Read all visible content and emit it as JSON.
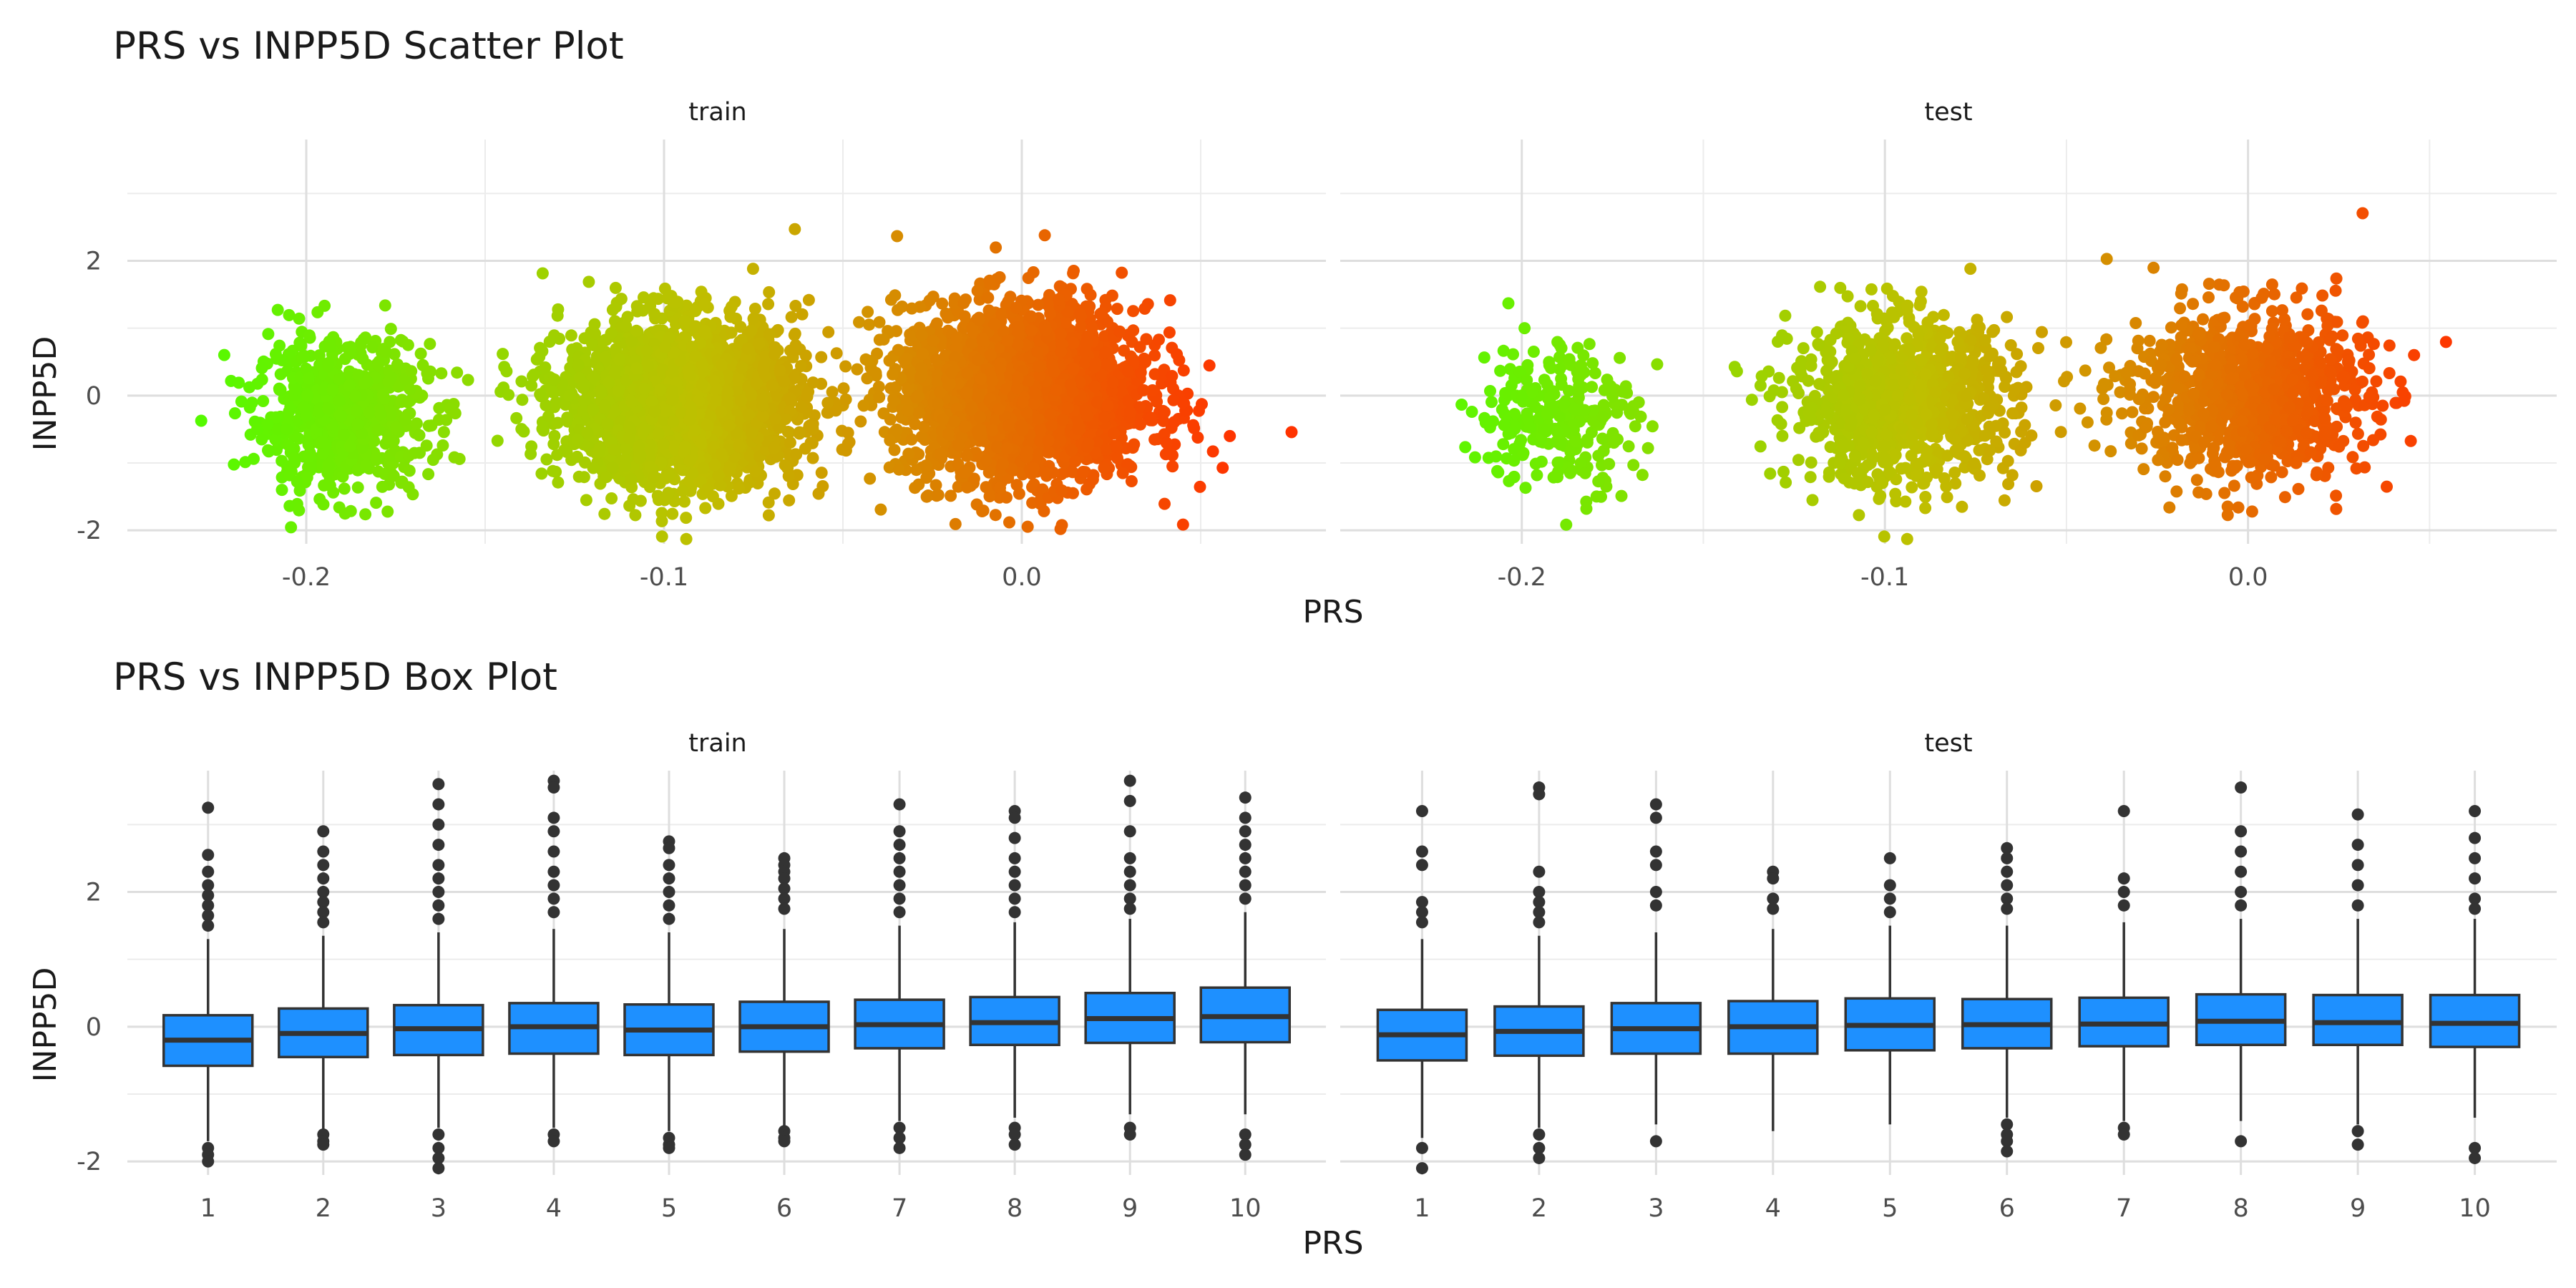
{
  "chart_data": [
    {
      "type": "scatter",
      "title": "PRS vs INPP5D Scatter Plot",
      "xlabel": "PRS",
      "ylabel": "INPP5D",
      "facets": [
        "train",
        "test"
      ],
      "xlim": [
        -0.25,
        0.085
      ],
      "ylim": [
        -2.2,
        3.8
      ],
      "x_ticks": [
        -0.2,
        -0.1,
        0.0
      ],
      "x_tick_labels": [
        "-0.2",
        "-0.1",
        "0.0"
      ],
      "y_ticks": [
        -2,
        0,
        2
      ],
      "y_tick_labels": [
        "-2",
        "0",
        "2"
      ],
      "grid": true,
      "color_gradient": [
        "#4dff00",
        "#bfbf00",
        "#ff3300"
      ],
      "clusters": [
        {
          "facet": "train",
          "x_center": -0.19,
          "x_spread": 0.022,
          "y_center": -0.3,
          "y_spread": 0.55
        },
        {
          "facet": "train",
          "x_center": -0.095,
          "x_spread": 0.03,
          "y_center": -0.1,
          "y_spread": 0.6
        },
        {
          "facet": "train",
          "x_center": 0.0,
          "x_spread": 0.032,
          "y_center": 0.05,
          "y_spread": 0.65
        },
        {
          "facet": "test",
          "x_center": -0.19,
          "x_spread": 0.02,
          "y_center": -0.3,
          "y_spread": 0.55
        },
        {
          "facet": "test",
          "x_center": -0.095,
          "x_spread": 0.028,
          "y_center": -0.1,
          "y_spread": 0.6
        },
        {
          "facet": "test",
          "x_center": 0.0,
          "x_spread": 0.03,
          "y_center": 0.05,
          "y_spread": 0.62
        }
      ]
    },
    {
      "type": "box",
      "title": "PRS vs INPP5D Box Plot",
      "xlabel": "PRS",
      "ylabel": "INPP5D",
      "facets": [
        "train",
        "test"
      ],
      "categories": [
        "1",
        "2",
        "3",
        "4",
        "5",
        "6",
        "7",
        "8",
        "9",
        "10"
      ],
      "ylim": [
        -2.2,
        3.8
      ],
      "y_ticks": [
        -2,
        0,
        2
      ],
      "y_tick_labels": [
        "-2",
        "0",
        "2"
      ],
      "grid": true,
      "fill_color": "#1e90ff",
      "series": [
        {
          "name": "train",
          "boxes": [
            {
              "q1": -0.58,
              "median": -0.2,
              "q3": 0.17,
              "whisker_low": -1.7,
              "whisker_high": 1.3,
              "outliers": [
                3.25,
                2.55,
                2.3,
                2.1,
                1.95,
                1.8,
                1.65,
                1.5,
                -1.8,
                -1.9,
                -2.0
              ]
            },
            {
              "q1": -0.45,
              "median": -0.1,
              "q3": 0.27,
              "whisker_low": -1.55,
              "whisker_high": 1.35,
              "outliers": [
                2.9,
                2.6,
                2.4,
                2.2,
                2.0,
                1.85,
                1.7,
                1.55,
                -1.6,
                -1.7,
                -1.75
              ]
            },
            {
              "q1": -0.42,
              "median": -0.03,
              "q3": 0.32,
              "whisker_low": -1.5,
              "whisker_high": 1.4,
              "outliers": [
                3.6,
                3.3,
                3.0,
                2.7,
                2.4,
                2.2,
                2.0,
                1.8,
                1.6,
                -1.6,
                -1.8,
                -1.95,
                -2.1
              ]
            },
            {
              "q1": -0.4,
              "median": 0.0,
              "q3": 0.35,
              "whisker_low": -1.5,
              "whisker_high": 1.45,
              "outliers": [
                3.65,
                3.55,
                3.1,
                2.9,
                2.6,
                2.3,
                2.1,
                1.9,
                1.7,
                -1.6,
                -1.7
              ]
            },
            {
              "q1": -0.42,
              "median": -0.05,
              "q3": 0.33,
              "whisker_low": -1.55,
              "whisker_high": 1.4,
              "outliers": [
                2.75,
                2.65,
                2.4,
                2.2,
                2.0,
                1.8,
                1.6,
                -1.65,
                -1.75,
                -1.8
              ]
            },
            {
              "q1": -0.37,
              "median": 0.0,
              "q3": 0.37,
              "whisker_low": -1.5,
              "whisker_high": 1.45,
              "outliers": [
                2.5,
                2.4,
                2.3,
                2.2,
                2.05,
                1.9,
                1.75,
                -1.55,
                -1.65,
                -1.7
              ]
            },
            {
              "q1": -0.32,
              "median": 0.03,
              "q3": 0.4,
              "whisker_low": -1.4,
              "whisker_high": 1.5,
              "outliers": [
                3.3,
                2.9,
                2.7,
                2.5,
                2.3,
                2.1,
                1.9,
                1.7,
                -1.5,
                -1.65,
                -1.8
              ]
            },
            {
              "q1": -0.27,
              "median": 0.06,
              "q3": 0.44,
              "whisker_low": -1.35,
              "whisker_high": 1.55,
              "outliers": [
                3.2,
                3.1,
                2.8,
                2.5,
                2.3,
                2.1,
                1.9,
                1.7,
                -1.5,
                -1.6,
                -1.75
              ]
            },
            {
              "q1": -0.24,
              "median": 0.12,
              "q3": 0.5,
              "whisker_low": -1.3,
              "whisker_high": 1.6,
              "outliers": [
                3.65,
                3.35,
                2.9,
                2.5,
                2.3,
                2.1,
                1.9,
                1.75,
                -1.5,
                -1.6
              ]
            },
            {
              "q1": -0.23,
              "median": 0.15,
              "q3": 0.58,
              "whisker_low": -1.3,
              "whisker_high": 1.7,
              "outliers": [
                3.4,
                3.1,
                2.9,
                2.7,
                2.5,
                2.3,
                2.1,
                1.9,
                -1.6,
                -1.75,
                -1.9
              ]
            }
          ]
        },
        {
          "name": "test",
          "boxes": [
            {
              "q1": -0.5,
              "median": -0.12,
              "q3": 0.25,
              "whisker_low": -1.65,
              "whisker_high": 1.3,
              "outliers": [
                3.2,
                2.6,
                2.4,
                1.85,
                1.7,
                1.55,
                -1.8,
                -2.1
              ]
            },
            {
              "q1": -0.43,
              "median": -0.07,
              "q3": 0.3,
              "whisker_low": -1.5,
              "whisker_high": 1.35,
              "outliers": [
                3.55,
                3.45,
                2.3,
                2.0,
                1.85,
                1.7,
                1.55,
                -1.6,
                -1.8,
                -1.95
              ]
            },
            {
              "q1": -0.4,
              "median": -0.03,
              "q3": 0.35,
              "whisker_low": -1.45,
              "whisker_high": 1.4,
              "outliers": [
                3.3,
                3.1,
                2.6,
                2.4,
                2.0,
                1.8,
                -1.7
              ]
            },
            {
              "q1": -0.4,
              "median": 0.0,
              "q3": 0.38,
              "whisker_low": -1.55,
              "whisker_high": 1.45,
              "outliers": [
                2.3,
                2.2,
                1.9,
                1.75
              ]
            },
            {
              "q1": -0.35,
              "median": 0.02,
              "q3": 0.42,
              "whisker_low": -1.45,
              "whisker_high": 1.5,
              "outliers": [
                2.5,
                2.1,
                1.9,
                1.7
              ]
            },
            {
              "q1": -0.32,
              "median": 0.03,
              "q3": 0.41,
              "whisker_low": -1.35,
              "whisker_high": 1.5,
              "outliers": [
                2.65,
                2.5,
                2.3,
                2.1,
                1.9,
                1.75,
                -1.45,
                -1.6,
                -1.7,
                -1.85
              ]
            },
            {
              "q1": -0.29,
              "median": 0.04,
              "q3": 0.43,
              "whisker_low": -1.4,
              "whisker_high": 1.55,
              "outliers": [
                3.2,
                2.2,
                2.0,
                1.8,
                -1.5,
                -1.6
              ]
            },
            {
              "q1": -0.27,
              "median": 0.08,
              "q3": 0.48,
              "whisker_low": -1.4,
              "whisker_high": 1.6,
              "outliers": [
                3.55,
                2.9,
                2.6,
                2.3,
                2.0,
                1.8,
                -1.7
              ]
            },
            {
              "q1": -0.27,
              "median": 0.06,
              "q3": 0.47,
              "whisker_low": -1.45,
              "whisker_high": 1.6,
              "outliers": [
                3.15,
                2.7,
                2.4,
                2.1,
                1.8,
                -1.55,
                -1.75
              ]
            },
            {
              "q1": -0.3,
              "median": 0.05,
              "q3": 0.47,
              "whisker_low": -1.35,
              "whisker_high": 1.6,
              "outliers": [
                3.2,
                2.8,
                2.5,
                2.2,
                1.9,
                1.75,
                -1.8,
                -1.95
              ]
            }
          ]
        }
      ]
    }
  ]
}
